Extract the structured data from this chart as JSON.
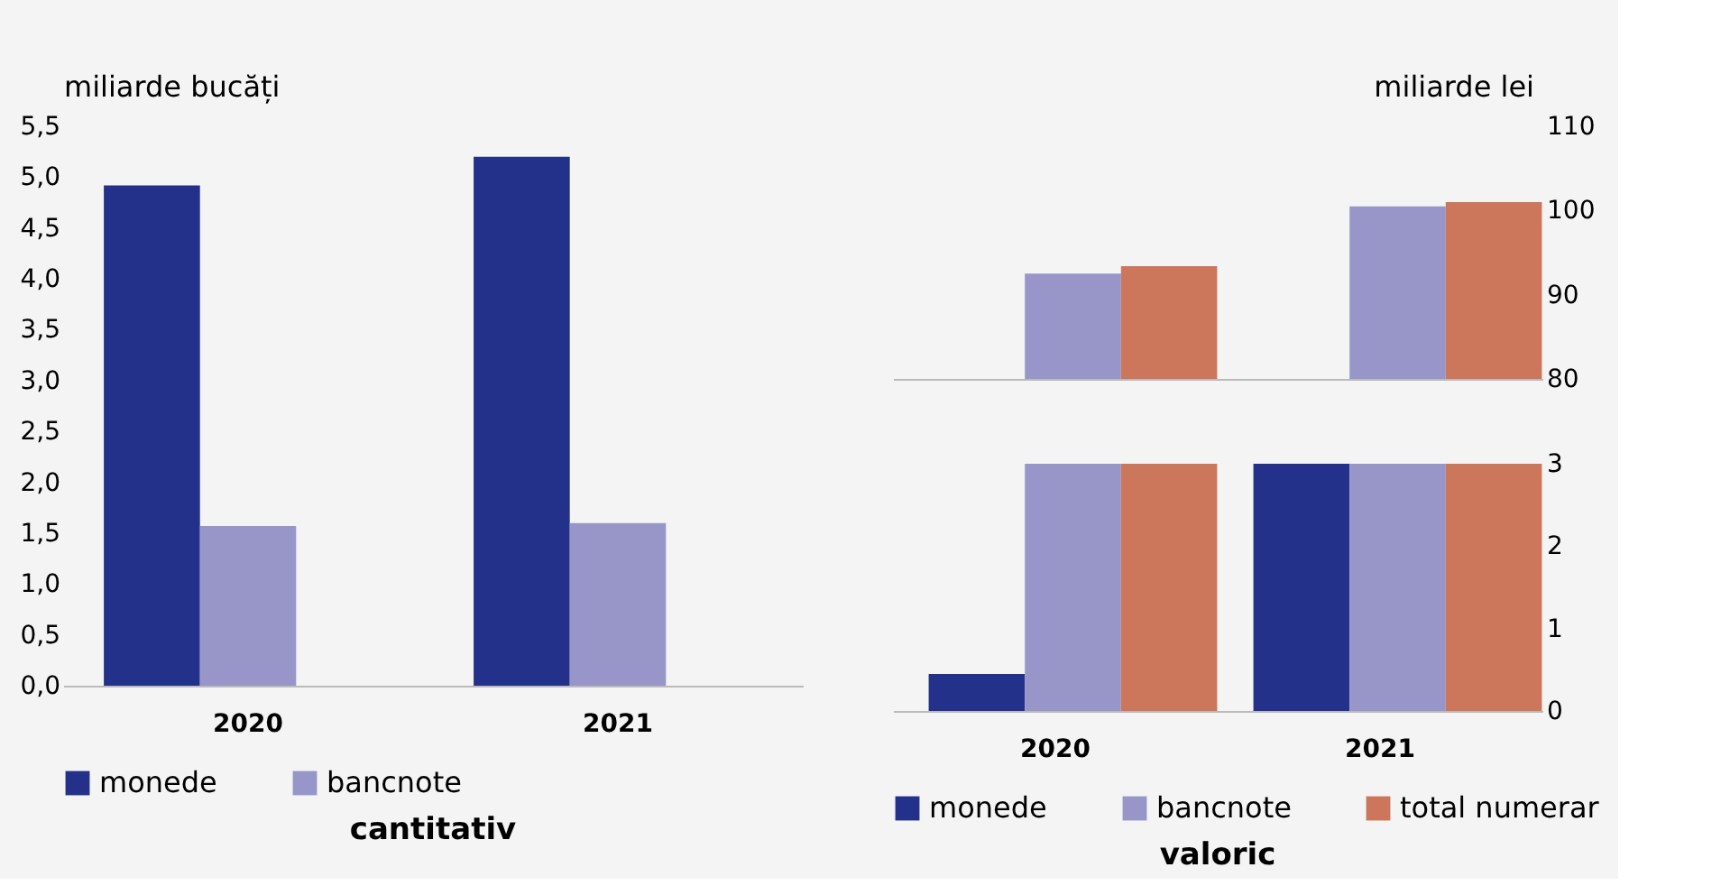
{
  "chart_data": [
    {
      "type": "bar",
      "title": "cantitativ",
      "ylabel": "miliarde bucăți",
      "categories": [
        "2020",
        "2021"
      ],
      "legend": "bottom",
      "grid": false,
      "series": [
        {
          "name": "monede",
          "color": "#23318a",
          "values": [
            4.92,
            5.2
          ]
        },
        {
          "name": "bancnote",
          "color": "#9896c8",
          "values": [
            1.57,
            1.6
          ]
        }
      ],
      "ylim": [
        0,
        5.5
      ],
      "yticks": [
        {
          "value": 0,
          "label": "0,0"
        },
        {
          "value": 0.5,
          "label": "0,5"
        },
        {
          "value": 1,
          "label": "1,0"
        },
        {
          "value": 1.5,
          "label": "1,5"
        },
        {
          "value": 2,
          "label": "2,0"
        },
        {
          "value": 2.5,
          "label": "2,5"
        },
        {
          "value": 3,
          "label": "3,0"
        },
        {
          "value": 3.5,
          "label": "3,5"
        },
        {
          "value": 4,
          "label": "4,0"
        },
        {
          "value": 4.5,
          "label": "4,5"
        },
        {
          "value": 5,
          "label": "5,0"
        },
        {
          "value": 5.5,
          "label": "5,5"
        }
      ]
    },
    {
      "type": "bar",
      "y2label": "miliarde lei",
      "categories": [
        "2020",
        "2021"
      ],
      "legend": false,
      "grid": false,
      "tick_labels": "y",
      "series": [
        {
          "color": "#23318a",
          "axis": "y2",
          "values": [
            null,
            null
          ]
        },
        {
          "color": "#9896c8",
          "axis": "y2",
          "values": [
            92.5,
            100.5
          ]
        },
        {
          "color": "#cc765c",
          "axis": "y2",
          "values": [
            93.4,
            101
          ]
        }
      ],
      "y2lim": [
        80,
        110
      ],
      "y2ticks": [
        80,
        90,
        100,
        110
      ]
    },
    {
      "type": "bar",
      "title": "valoric",
      "categories": [
        "2020",
        "2021"
      ],
      "legend": "bottom",
      "grid": false,
      "series": [
        {
          "name": "monede",
          "color": "#23318a",
          "axis": "y2",
          "values": [
            0.45,
            3
          ]
        },
        {
          "name": "bancnote",
          "color": "#9896c8",
          "axis": "y2",
          "values": [
            3,
            3
          ]
        },
        {
          "name": "total numerar",
          "color": "#cc765c",
          "axis": "y2",
          "values": [
            3,
            3
          ]
        }
      ],
      "y2lim": [
        0,
        3
      ],
      "y2ticks": [
        0,
        1,
        2,
        3
      ]
    }
  ]
}
